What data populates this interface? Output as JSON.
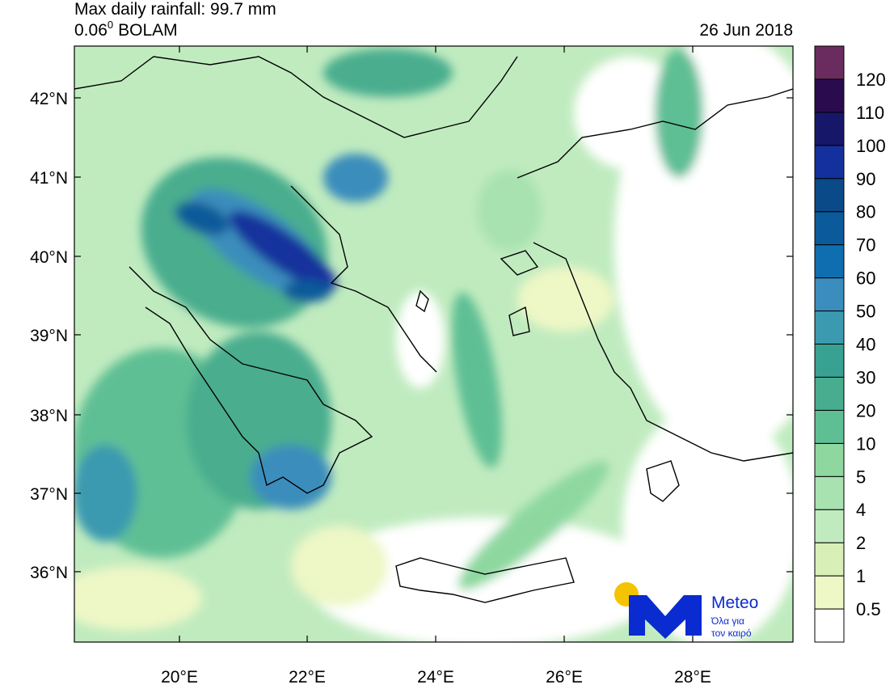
{
  "header": {
    "title": "Max daily rainfall: 99.7 mm",
    "model_resolution": "0.06",
    "model_superscript": "0",
    "model_name": "BOLAM",
    "date": "26 Jun 2018"
  },
  "map": {
    "lat_labels": [
      "42°N",
      "41°N",
      "40°N",
      "39°N",
      "38°N",
      "37°N",
      "36°N"
    ],
    "lon_labels": [
      "20°E",
      "22°E",
      "24°E",
      "26°E",
      "28°E"
    ]
  },
  "colorbar": {
    "labels": [
      "0.5",
      "1",
      "2",
      "4",
      "5",
      "10",
      "20",
      "30",
      "40",
      "50",
      "60",
      "70",
      "80",
      "90",
      "100",
      "110",
      "120"
    ],
    "colors": [
      "#ffffff",
      "#eef7c6",
      "#d8f0b8",
      "#c0ebbf",
      "#a8e2b0",
      "#8ed8a0",
      "#5fbf94",
      "#48ad8e",
      "#38a191",
      "#3b9ab0",
      "#3a8dbc",
      "#0f6eb0",
      "#0b5a9a",
      "#0a4a88",
      "#14309c",
      "#17176a",
      "#2a0c4e",
      "#6a2c5e"
    ]
  },
  "logo": {
    "name": "Meteo",
    "tagline_1": "Όλα για",
    "tagline_2": "τον καιρό"
  }
}
